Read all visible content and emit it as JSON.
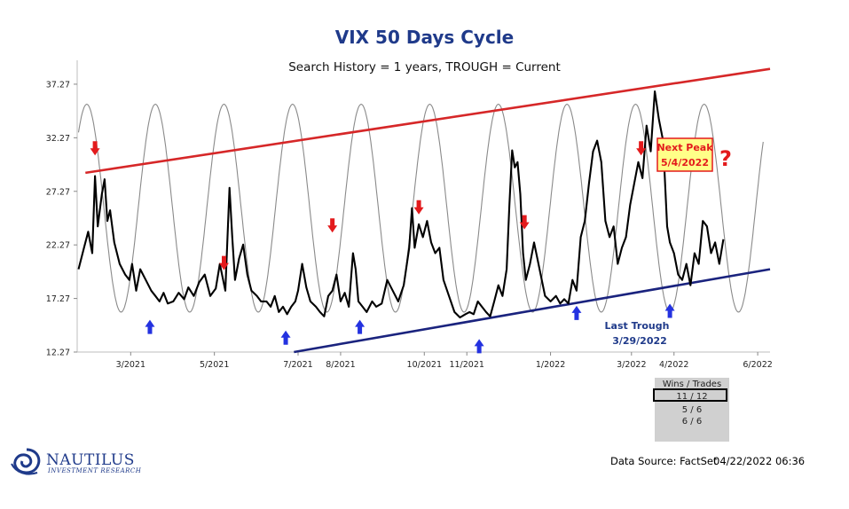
{
  "chart_data": {
    "type": "line",
    "title": "VIX 50 Days Cycle",
    "subtitle": "Search History = 1 years, TROUGH = Current",
    "y_ticks": [
      12.27,
      17.27,
      22.27,
      27.27,
      32.27,
      37.27
    ],
    "ylim": [
      12.27,
      39.5
    ],
    "x_ticks": [
      "3/2021",
      "5/2021",
      "7/2021",
      "8/2021",
      "10/2021",
      "11/2021",
      "1/2022",
      "3/2022",
      "4/2022",
      "6/2022"
    ],
    "xlim": [
      "2021-01-21",
      "2022-06-10"
    ],
    "series": [
      {
        "color": "#000000",
        "points": [
          [
            "2021-01-22",
            20.0
          ],
          [
            "2021-01-26",
            22.0
          ],
          [
            "2021-01-29",
            23.5
          ],
          [
            "2021-02-01",
            21.5
          ],
          [
            "2021-02-03",
            28.7
          ],
          [
            "2021-02-05",
            24.0
          ],
          [
            "2021-02-08",
            27.0
          ],
          [
            "2021-02-10",
            28.4
          ],
          [
            "2021-02-12",
            24.5
          ],
          [
            "2021-02-14",
            25.5
          ],
          [
            "2021-02-17",
            22.5
          ],
          [
            "2021-02-21",
            20.5
          ],
          [
            "2021-02-25",
            19.5
          ],
          [
            "2021-02-28",
            19.0
          ],
          [
            "2021-03-02",
            20.5
          ],
          [
            "2021-03-05",
            18.0
          ],
          [
            "2021-03-08",
            20.0
          ],
          [
            "2021-03-12",
            19.0
          ],
          [
            "2021-03-16",
            18.0
          ],
          [
            "2021-03-19",
            17.5
          ],
          [
            "2021-03-22",
            17.0
          ],
          [
            "2021-03-25",
            17.8
          ],
          [
            "2021-03-28",
            16.8
          ],
          [
            "2021-04-01",
            17.0
          ],
          [
            "2021-04-05",
            17.8
          ],
          [
            "2021-04-09",
            17.2
          ],
          [
            "2021-04-12",
            18.3
          ],
          [
            "2021-04-16",
            17.5
          ],
          [
            "2021-04-20",
            18.8
          ],
          [
            "2021-04-24",
            19.5
          ],
          [
            "2021-04-28",
            17.5
          ],
          [
            "2021-05-02",
            18.2
          ],
          [
            "2021-05-05",
            20.5
          ],
          [
            "2021-05-09",
            18.0
          ],
          [
            "2021-05-12",
            27.6
          ],
          [
            "2021-05-14",
            23.0
          ],
          [
            "2021-05-16",
            19.0
          ],
          [
            "2021-05-19",
            21.0
          ],
          [
            "2021-05-22",
            22.3
          ],
          [
            "2021-05-25",
            19.5
          ],
          [
            "2021-05-28",
            18.0
          ],
          [
            "2021-06-01",
            17.5
          ],
          [
            "2021-06-04",
            17.0
          ],
          [
            "2021-06-08",
            17.0
          ],
          [
            "2021-06-11",
            16.5
          ],
          [
            "2021-06-14",
            17.5
          ],
          [
            "2021-06-17",
            16.0
          ],
          [
            "2021-06-20",
            16.5
          ],
          [
            "2021-06-23",
            15.8
          ],
          [
            "2021-06-26",
            16.5
          ],
          [
            "2021-06-29",
            17.0
          ],
          [
            "2021-07-01",
            18.0
          ],
          [
            "2021-07-04",
            20.5
          ],
          [
            "2021-07-07",
            18.3
          ],
          [
            "2021-07-10",
            17.0
          ],
          [
            "2021-07-14",
            16.5
          ],
          [
            "2021-07-17",
            16.0
          ],
          [
            "2021-07-20",
            15.6
          ],
          [
            "2021-07-23",
            17.5
          ],
          [
            "2021-07-26",
            18.0
          ],
          [
            "2021-07-29",
            19.5
          ],
          [
            "2021-08-01",
            17.0
          ],
          [
            "2021-08-04",
            17.8
          ],
          [
            "2021-08-07",
            16.5
          ],
          [
            "2021-08-10",
            21.5
          ],
          [
            "2021-08-12",
            20.0
          ],
          [
            "2021-08-14",
            17.0
          ],
          [
            "2021-08-17",
            16.5
          ],
          [
            "2021-08-20",
            16.0
          ],
          [
            "2021-08-24",
            17.0
          ],
          [
            "2021-08-27",
            16.5
          ],
          [
            "2021-08-31",
            16.8
          ],
          [
            "2021-09-04",
            19.0
          ],
          [
            "2021-09-08",
            18.0
          ],
          [
            "2021-09-12",
            17.0
          ],
          [
            "2021-09-16",
            18.5
          ],
          [
            "2021-09-20",
            22.0
          ],
          [
            "2021-09-22",
            25.7
          ],
          [
            "2021-09-24",
            22.0
          ],
          [
            "2021-09-27",
            24.2
          ],
          [
            "2021-09-30",
            23.0
          ],
          [
            "2021-10-03",
            24.5
          ],
          [
            "2021-10-06",
            22.5
          ],
          [
            "2021-10-09",
            21.5
          ],
          [
            "2021-10-12",
            22.0
          ],
          [
            "2021-10-15",
            19.0
          ],
          [
            "2021-10-19",
            17.5
          ],
          [
            "2021-10-23",
            16.0
          ],
          [
            "2021-10-27",
            15.5
          ],
          [
            "2021-10-31",
            15.8
          ],
          [
            "2021-11-03",
            16.0
          ],
          [
            "2021-11-06",
            15.8
          ],
          [
            "2021-11-09",
            17.0
          ],
          [
            "2021-11-12",
            16.5
          ],
          [
            "2021-11-15",
            16.0
          ],
          [
            "2021-11-18",
            15.6
          ],
          [
            "2021-11-21",
            17.0
          ],
          [
            "2021-11-24",
            18.5
          ],
          [
            "2021-11-27",
            17.5
          ],
          [
            "2021-11-30",
            20.0
          ],
          [
            "2021-12-02",
            26.0
          ],
          [
            "2021-12-04",
            31.1
          ],
          [
            "2021-12-06",
            29.5
          ],
          [
            "2021-12-08",
            30.0
          ],
          [
            "2021-12-10",
            27.0
          ],
          [
            "2021-12-12",
            21.5
          ],
          [
            "2021-12-14",
            19.0
          ],
          [
            "2021-12-17",
            20.5
          ],
          [
            "2021-12-20",
            22.5
          ],
          [
            "2021-12-24",
            20.0
          ],
          [
            "2021-12-28",
            17.5
          ],
          [
            "2022-01-01",
            17.0
          ],
          [
            "2022-01-05",
            17.5
          ],
          [
            "2022-01-08",
            16.8
          ],
          [
            "2022-01-11",
            17.2
          ],
          [
            "2022-01-14",
            16.8
          ],
          [
            "2022-01-17",
            19.0
          ],
          [
            "2022-01-20",
            18.0
          ],
          [
            "2022-01-23",
            23.0
          ],
          [
            "2022-01-26",
            24.5
          ],
          [
            "2022-01-29",
            28.0
          ],
          [
            "2022-02-01",
            31.0
          ],
          [
            "2022-02-04",
            32.0
          ],
          [
            "2022-02-07",
            30.0
          ],
          [
            "2022-02-10",
            24.5
          ],
          [
            "2022-02-13",
            23.0
          ],
          [
            "2022-02-16",
            24.0
          ],
          [
            "2022-02-19",
            20.5
          ],
          [
            "2022-02-22",
            22.0
          ],
          [
            "2022-02-25",
            23.0
          ],
          [
            "2022-02-28",
            26.0
          ],
          [
            "2022-03-03",
            28.0
          ],
          [
            "2022-03-06",
            30.0
          ],
          [
            "2022-03-09",
            28.5
          ],
          [
            "2022-03-12",
            33.4
          ],
          [
            "2022-03-15",
            31.0
          ],
          [
            "2022-03-18",
            36.6
          ],
          [
            "2022-03-21",
            34.0
          ],
          [
            "2022-03-24",
            32.0
          ],
          [
            "2022-03-27",
            24.0
          ],
          [
            "2022-03-29",
            22.5
          ],
          [
            "2022-04-01",
            21.5
          ],
          [
            "2022-04-04",
            19.5
          ],
          [
            "2022-04-07",
            19.0
          ],
          [
            "2022-04-10",
            20.5
          ],
          [
            "2022-04-13",
            18.5
          ],
          [
            "2022-04-16",
            21.5
          ],
          [
            "2022-04-19",
            20.5
          ],
          [
            "2022-04-22",
            24.5
          ],
          [
            "2022-04-25",
            24.0
          ],
          [
            "2022-04-28",
            21.5
          ],
          [
            "2022-05-01",
            22.5
          ],
          [
            "2022-05-04",
            20.5
          ],
          [
            "2022-05-07",
            22.8
          ]
        ]
      },
      {
        "color": "#8a8a8a",
        "type": "cycle",
        "period_days": 50,
        "trough_date": "2022-03-29",
        "low": 16.0,
        "high": 35.4,
        "start": "2021-01-22",
        "end": "2022-06-05"
      }
    ],
    "trendlines": [
      {
        "color": "#d62728",
        "from": [
          "2021-01-27",
          29.0
        ],
        "to": [
          "2022-06-10",
          38.7
        ]
      },
      {
        "color": "#1a237e",
        "from": [
          "2021-06-28",
          12.27
        ],
        "to": [
          "2022-06-10",
          20.0
        ]
      }
    ],
    "markers": [
      {
        "direction": "down",
        "color": "#e31a1c",
        "x": "2021-02-03",
        "y": 31.2
      },
      {
        "direction": "down",
        "color": "#e31a1c",
        "x": "2021-05-08",
        "y": 20.5
      },
      {
        "direction": "down",
        "color": "#e31a1c",
        "x": "2021-07-26",
        "y": 24.0
      },
      {
        "direction": "down",
        "color": "#e31a1c",
        "x": "2021-09-27",
        "y": 25.7
      },
      {
        "direction": "down",
        "color": "#e31a1c",
        "x": "2021-12-13",
        "y": 24.3
      },
      {
        "direction": "down",
        "color": "#e31a1c",
        "x": "2022-03-08",
        "y": 31.2
      },
      {
        "direction": "up",
        "color": "#2432e0",
        "x": "2021-03-15",
        "y": 14.7
      },
      {
        "direction": "up",
        "color": "#2432e0",
        "x": "2021-06-22",
        "y": 13.7
      },
      {
        "direction": "up",
        "color": "#2432e0",
        "x": "2021-08-15",
        "y": 14.7
      },
      {
        "direction": "up",
        "color": "#2432e0",
        "x": "2021-11-10",
        "y": 12.9
      },
      {
        "direction": "up",
        "color": "#2432e0",
        "x": "2022-01-20",
        "y": 16.0
      },
      {
        "direction": "up",
        "color": "#2432e0",
        "x": "2022-03-29",
        "y": 16.2
      }
    ],
    "annotations": {
      "next_peak": "Next Peak\n5/4/2022",
      "question_mark": "?",
      "last_trough": "Last Trough\n3/29/2022"
    },
    "grid": false
  },
  "wins_table": {
    "header": "Wins / Trades",
    "rows": [
      "11 / 12",
      "5 / 6",
      "6 / 6"
    ]
  },
  "footer": {
    "source": "Data Source: FactSet",
    "timestamp": "04/22/2022 06:36"
  },
  "logo": {
    "name": "NAUTILUS",
    "tagline": "INVESTMENT RESEARCH"
  }
}
